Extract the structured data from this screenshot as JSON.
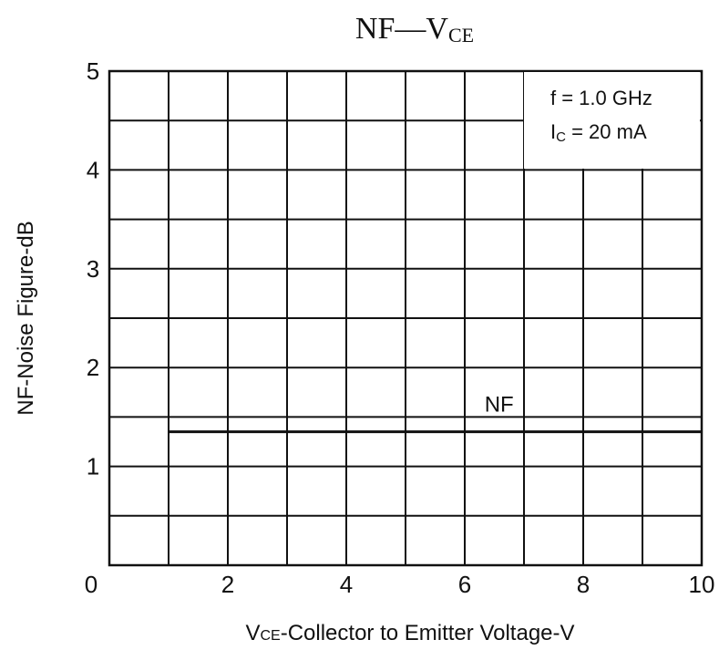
{
  "chart_data": {
    "type": "line",
    "title_main": "NF—V",
    "title_sub": "CE",
    "xlabel_main": "V",
    "xlabel_sub": "CE",
    "xlabel_rest": "-Collector to Emitter Voltage-V",
    "ylabel": "NF-Noise Figure-dB",
    "xlim": [
      0,
      10
    ],
    "ylim": [
      0,
      5
    ],
    "x_ticks": [
      "0",
      "2",
      "4",
      "6",
      "8",
      "10"
    ],
    "y_ticks": [
      "0",
      "1",
      "2",
      "3",
      "4",
      "5"
    ],
    "grid": true,
    "annotation_line1": "f = 1.0 GHz",
    "annotation_line2_main": "I",
    "annotation_line2_sub": "C",
    "annotation_line2_rest": " = 20 mA",
    "series": [
      {
        "name": "NF",
        "x": [
          1,
          10
        ],
        "y": [
          1.35,
          1.35
        ]
      }
    ],
    "colors": {
      "line": "#111111",
      "grid": "#111111"
    }
  }
}
